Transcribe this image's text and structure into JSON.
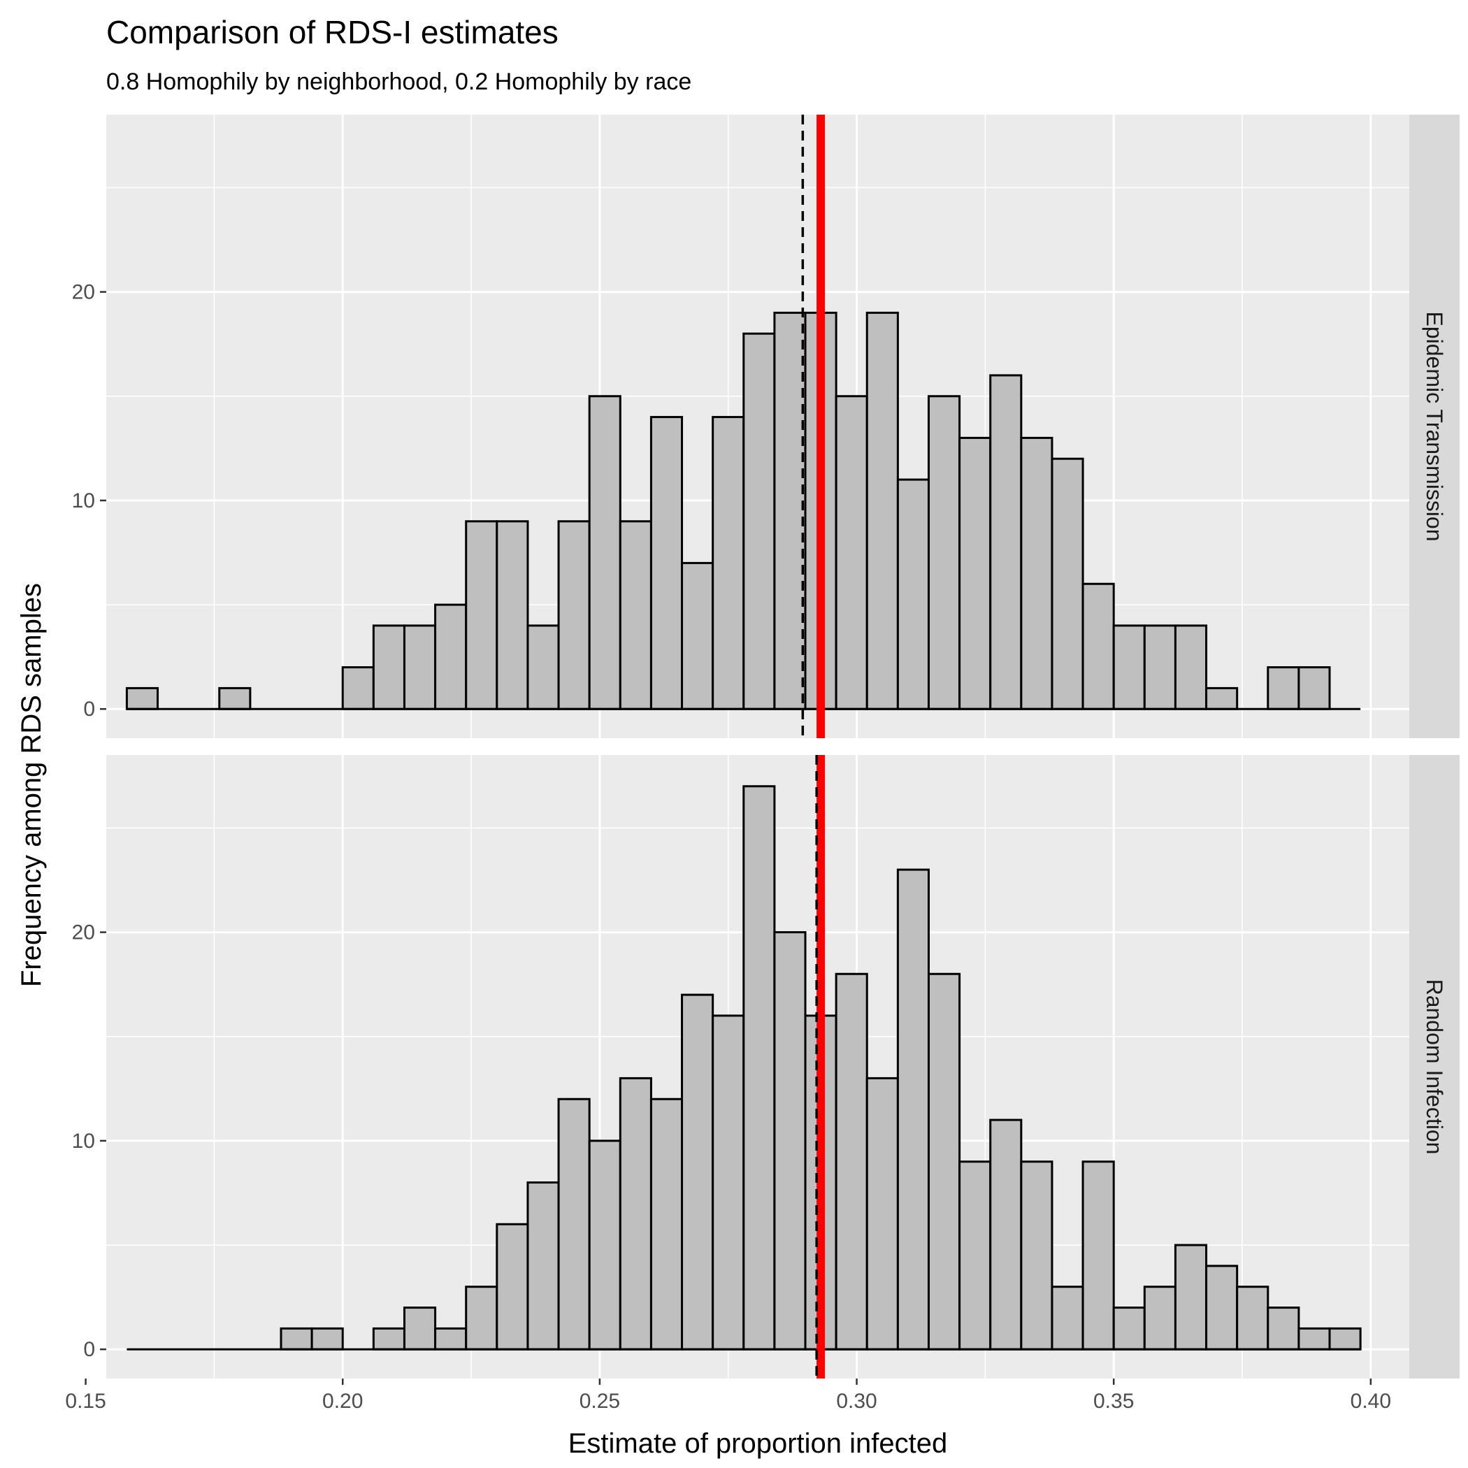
{
  "chart_data": {
    "type": "bar",
    "title": "Comparison of RDS-I estimates",
    "subtitle": "0.8 Homophily by neighborhood, 0.2 Homophily by race",
    "xlabel": "Estimate of proportion infected",
    "ylabel": "Frequency among RDS samples",
    "xlim": [
      0.154,
      0.4075
    ],
    "ylim": [
      -1.4,
      28.5
    ],
    "x_ticks": [
      0.15,
      0.2,
      0.25,
      0.3,
      0.35,
      0.4
    ],
    "x_tick_labels": [
      "0.15",
      "0.20",
      "0.25",
      "0.30",
      "0.35",
      "0.40"
    ],
    "y_ticks": [
      0,
      10,
      20
    ],
    "y_tick_labels": [
      "0",
      "10",
      "20"
    ],
    "bin_start": 0.158,
    "bin_width": 0.006,
    "colors": {
      "bar_fill": "#bfbfbf",
      "bar_outline": "#000000",
      "true_value_line": "#ff0000",
      "estimate_line": "#000000",
      "panel_background": "#ebebeb",
      "strip_background": "#d9d9d9"
    },
    "grid": true,
    "panels": [
      {
        "strip_label": "Epidemic Transmission",
        "counts": [
          1,
          0,
          0,
          1,
          0,
          0,
          0,
          2,
          4,
          4,
          5,
          9,
          9,
          4,
          9,
          15,
          9,
          14,
          7,
          14,
          18,
          19,
          19,
          15,
          19,
          11,
          15,
          13,
          16,
          13,
          12,
          6,
          4,
          4,
          4,
          1,
          0,
          2,
          2,
          0
        ],
        "true_value": 0.293,
        "mean_estimate": 0.2895
      },
      {
        "strip_label": "Random Infection",
        "counts": [
          0,
          0,
          0,
          0,
          0,
          1,
          1,
          0,
          1,
          2,
          1,
          3,
          6,
          8,
          12,
          10,
          13,
          12,
          17,
          16,
          27,
          20,
          16,
          18,
          13,
          23,
          18,
          9,
          11,
          9,
          3,
          9,
          2,
          3,
          5,
          4,
          3,
          2,
          1,
          1
        ],
        "true_value": 0.293,
        "mean_estimate": 0.2922
      }
    ]
  }
}
